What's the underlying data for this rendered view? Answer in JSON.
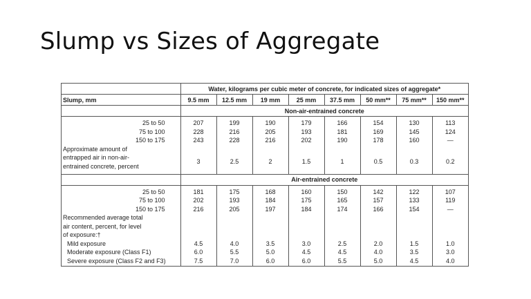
{
  "title": "Slump vs Sizes of Aggregate",
  "table": {
    "header_main": "Water, kilograms per cubic meter of concrete, for indicated sizes of aggregate*",
    "slump_label": "Slump, mm",
    "sizes": [
      "9.5 mm",
      "12.5 mm",
      "19 mm",
      "25 mm",
      "37.5 mm",
      "50 mm**",
      "75 mm**",
      "150 mm**"
    ],
    "section1_title": "Non-air-entrained concrete",
    "section1_slumps": [
      "25 to  50",
      "75 to 100",
      "150 to 175"
    ],
    "section1_values": [
      [
        "207",
        "228",
        "243"
      ],
      [
        "199",
        "216",
        "228"
      ],
      [
        "190",
        "205",
        "216"
      ],
      [
        "179",
        "193",
        "202"
      ],
      [
        "166",
        "181",
        "190"
      ],
      [
        "154",
        "169",
        "178"
      ],
      [
        "130",
        "145",
        "160"
      ],
      [
        "113",
        "124",
        "—"
      ]
    ],
    "section1_note": [
      "Approximate amount of",
      "entrapped air in non-air-",
      "entrained concrete, percent"
    ],
    "section1_air": [
      "3",
      "2.5",
      "2",
      "1.5",
      "1",
      "0.5",
      "0.3",
      "0.2"
    ],
    "section2_title": "Air-entrained concrete",
    "section2_slumps": [
      "25 to  50",
      "75 to 100",
      "150 to 175"
    ],
    "section2_values": [
      [
        "181",
        "202",
        "216"
      ],
      [
        "175",
        "193",
        "205"
      ],
      [
        "168",
        "184",
        "197"
      ],
      [
        "160",
        "175",
        "184"
      ],
      [
        "150",
        "165",
        "174"
      ],
      [
        "142",
        "157",
        "166"
      ],
      [
        "122",
        "133",
        "154"
      ],
      [
        "107",
        "119",
        "—"
      ]
    ],
    "section2_note": [
      "Recommended average total",
      "air content, percent, for level",
      "of exposure:†"
    ],
    "exposure_labels": [
      "Mild exposure",
      "Moderate exposure (Class F1)",
      "Severe exposure (Class F2 and F3)"
    ],
    "exposure_values": [
      [
        "4.5",
        "6.0",
        "7.5"
      ],
      [
        "4.0",
        "5.5",
        "7.0"
      ],
      [
        "3.5",
        "5.0",
        "6.0"
      ],
      [
        "3.0",
        "4.5",
        "6.0"
      ],
      [
        "2.5",
        "4.5",
        "5.5"
      ],
      [
        "2.0",
        "4.0",
        "5.0"
      ],
      [
        "1.5",
        "3.5",
        "4.5"
      ],
      [
        "1.0",
        "3.0",
        "4.0"
      ]
    ]
  }
}
